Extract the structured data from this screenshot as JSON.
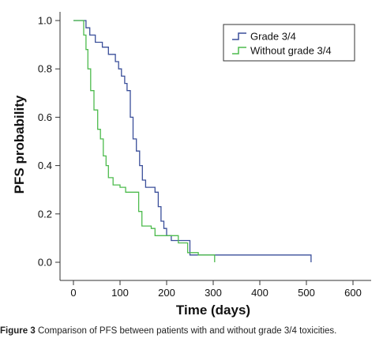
{
  "chart_data": {
    "type": "line",
    "step": true,
    "xlabel": "Time (days)",
    "ylabel": "PFS probability",
    "xlim": [
      0,
      600
    ],
    "ylim": [
      0,
      1.0
    ],
    "xticks": [
      0,
      100,
      200,
      300,
      400,
      500,
      600
    ],
    "yticks": [
      0.0,
      0.2,
      0.4,
      0.6,
      0.8,
      1.0
    ],
    "xtick_labels": [
      "0",
      "100",
      "200",
      "300",
      "400",
      "500",
      "600"
    ],
    "ytick_labels": [
      "0.0",
      "0.2",
      "0.4",
      "0.6",
      "0.8",
      "1.0"
    ],
    "legend_position": "top-right",
    "grid": false,
    "series": [
      {
        "name": "Grade 3/4",
        "color": "#3a4f9a",
        "x": [
          0,
          27,
          35,
          47,
          62,
          75,
          90,
          97,
          103,
          110,
          115,
          122,
          128,
          135,
          142,
          148,
          155,
          175,
          182,
          188,
          194,
          200,
          210,
          250,
          255,
          510
        ],
        "y": [
          1.0,
          0.97,
          0.94,
          0.91,
          0.89,
          0.86,
          0.83,
          0.8,
          0.77,
          0.74,
          0.71,
          0.6,
          0.51,
          0.46,
          0.4,
          0.34,
          0.31,
          0.29,
          0.23,
          0.17,
          0.14,
          0.11,
          0.09,
          0.03,
          0.03,
          0.0
        ]
      },
      {
        "name": "Without grade 3/4",
        "color": "#4dbb4d",
        "x": [
          0,
          22,
          27,
          31,
          37,
          44,
          52,
          58,
          64,
          70,
          75,
          85,
          100,
          112,
          140,
          147,
          167,
          175,
          225,
          245,
          268,
          278,
          303
        ],
        "y": [
          1.0,
          0.94,
          0.88,
          0.8,
          0.71,
          0.63,
          0.55,
          0.51,
          0.44,
          0.4,
          0.35,
          0.32,
          0.31,
          0.29,
          0.21,
          0.15,
          0.14,
          0.11,
          0.08,
          0.04,
          0.03,
          0.03,
          0.0
        ]
      }
    ]
  },
  "caption": {
    "label": "Figure 3",
    "text": "Comparison of PFS between patients with and without grade 3/4 toxicities."
  }
}
